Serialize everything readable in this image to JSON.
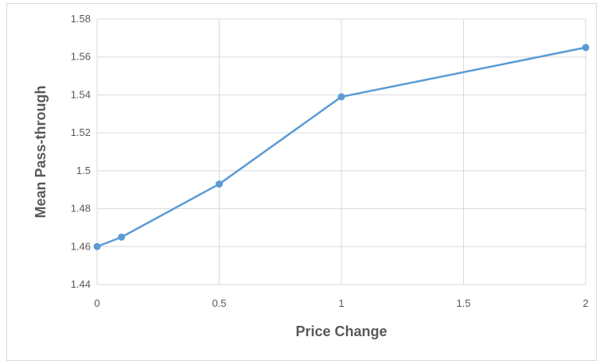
{
  "chart_data": {
    "type": "line",
    "title": "",
    "xlabel": "Price Change",
    "ylabel": "Mean Pass-through",
    "x": [
      0,
      0.1,
      0.5,
      1,
      2
    ],
    "series": [
      {
        "name": "",
        "values": [
          1.46,
          1.465,
          1.493,
          1.539,
          1.565
        ]
      }
    ],
    "xlim": [
      0,
      2
    ],
    "ylim": [
      1.44,
      1.58
    ],
    "xticks": [
      "0",
      "0.5",
      "1",
      "1.5",
      "2"
    ],
    "yticks": [
      "1.44",
      "1.46",
      "1.48",
      "1.5",
      "1.52",
      "1.54",
      "1.56",
      "1.58"
    ],
    "grid": true,
    "legend": "none",
    "colors": {
      "series": "#5b9bd5",
      "grid": "#d9d9d9",
      "text": "#595959",
      "border": "#d9d9d9"
    }
  }
}
